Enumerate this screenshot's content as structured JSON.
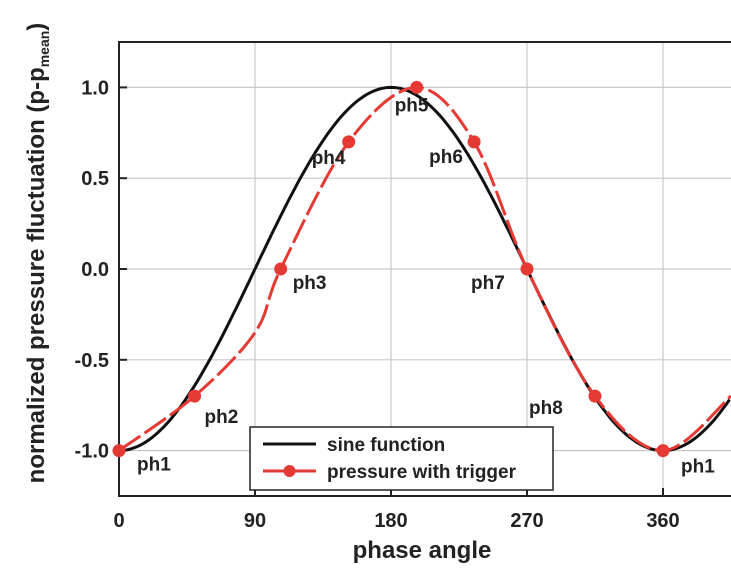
{
  "chart_data": {
    "type": "line",
    "xlabel": "phase angle",
    "ylabel_main": "normalized pressure fluctuation  (p-p",
    "ylabel_sub": "mean",
    "ylabel_close": ")",
    "xlim": [
      0,
      405
    ],
    "ylim": [
      -1.25,
      1.25
    ],
    "xticks": [
      0,
      90,
      180,
      270,
      360
    ],
    "yticks": [
      {
        "value": 1.0,
        "label": "1.0"
      },
      {
        "value": 0.5,
        "label": "0.5"
      },
      {
        "value": 0.0,
        "label": "0.0"
      },
      {
        "value": -0.5,
        "label": "-0.5"
      },
      {
        "value": -1.0,
        "label": "-1.0"
      }
    ],
    "grid": true,
    "legend_position": "bottom-center",
    "series": [
      {
        "name": "sine function",
        "color": "#111111",
        "style": "solid",
        "function": "-cos(x)"
      },
      {
        "name": "pressure with trigger",
        "color": "#e53a33",
        "style": "dashed-with-markers",
        "x": [
          0,
          50,
          90,
          107,
          152,
          197,
          235,
          270,
          315,
          360,
          405
        ],
        "y": [
          -1.0,
          -0.7,
          -0.35,
          0.0,
          0.7,
          1.0,
          0.7,
          0.0,
          -0.7,
          -1.0,
          -0.7
        ],
        "markers": [
          {
            "x": 0,
            "y": -1.0,
            "label": "ph1"
          },
          {
            "x": 50,
            "y": -0.7,
            "label": "ph2"
          },
          {
            "x": 107,
            "y": 0.0,
            "label": "ph3"
          },
          {
            "x": 152,
            "y": 0.7,
            "label": "ph4"
          },
          {
            "x": 197,
            "y": 1.0,
            "label": "ph5"
          },
          {
            "x": 235,
            "y": 0.7,
            "label": "ph6"
          },
          {
            "x": 270,
            "y": 0.0,
            "label": "ph7"
          },
          {
            "x": 315,
            "y": -0.7,
            "label": "ph8"
          },
          {
            "x": 360,
            "y": -1.0,
            "label": "ph1"
          }
        ]
      }
    ]
  }
}
